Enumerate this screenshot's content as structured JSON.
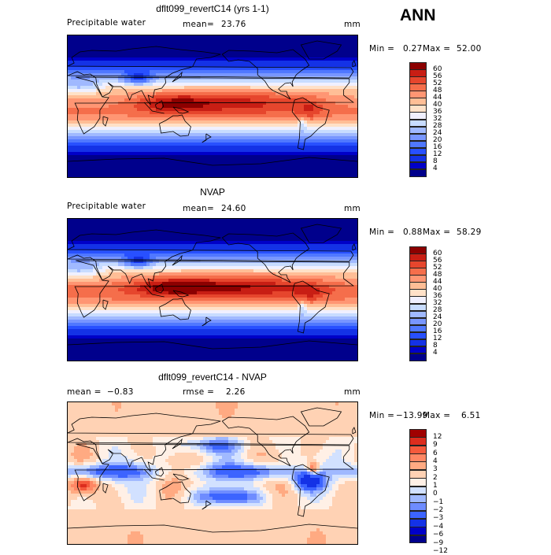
{
  "header": {
    "season": "ANN"
  },
  "colors": {
    "abs": [
      "#00008c",
      "#0000c8",
      "#1432e6",
      "#2850ff",
      "#5078ff",
      "#7896ff",
      "#a0b9ff",
      "#c8dcff",
      "#f0f0ff",
      "#ffe1c8",
      "#ffbe96",
      "#ff9673",
      "#f56e4b",
      "#e6462d",
      "#c81e14",
      "#8c0000"
    ],
    "diff": [
      "#00008c",
      "#0000c8",
      "#1432e6",
      "#3c64ff",
      "#6e8cff",
      "#a0b9ff",
      "#d2e1ff",
      "#fff0e6",
      "#ffd2b4",
      "#ffaa82",
      "#ff8764",
      "#f55a3c",
      "#dc2d1e",
      "#a00000"
    ]
  },
  "panels": [
    {
      "title": "dflt099_revertC14 (yrs 1-1)",
      "left": "Precipitable water",
      "mean_label": "mean=",
      "mean_value": "23.76",
      "units": "mm",
      "min_label": "Min =",
      "min_value": "0.27",
      "max_label": "Max =",
      "max_value": "52.00",
      "levels": [
        "60",
        "56",
        "52",
        "48",
        "44",
        "40",
        "36",
        "32",
        "28",
        "24",
        "20",
        "16",
        "12",
        "8",
        "4"
      ]
    },
    {
      "title": "NVAP",
      "left": "Precipitable water",
      "mean_label": "mean=",
      "mean_value": "24.60",
      "units": "mm",
      "min_label": "Min =",
      "min_value": "0.88",
      "max_label": "Max =",
      "max_value": "58.29",
      "levels": [
        "60",
        "56",
        "52",
        "48",
        "44",
        "40",
        "36",
        "32",
        "28",
        "24",
        "20",
        "16",
        "12",
        "8",
        "4"
      ]
    },
    {
      "title": "dflt099_revertC14 - NVAP",
      "left": "mean =",
      "left_value": "−0.83",
      "rmse_label": "rmse =",
      "rmse_value": "2.26",
      "units": "mm",
      "min_label": "Min =",
      "min_value": "−13.99",
      "max_label": "Max =",
      "max_value": "6.51",
      "levels": [
        "12",
        "9",
        "6",
        "4",
        "3",
        "2",
        "1",
        "0",
        "−1",
        "−2",
        "−3",
        "−4",
        "−6",
        "−9",
        "−12"
      ]
    }
  ],
  "chart_data": [
    {
      "type": "heatmap",
      "title": "dflt099_revertC14 (yrs 1-1)",
      "variable": "Precipitable water",
      "units": "mm",
      "mean": 23.76,
      "min": 0.27,
      "max": 52.0,
      "contour_levels": [
        4,
        8,
        12,
        16,
        20,
        24,
        28,
        32,
        36,
        40,
        44,
        48,
        52,
        56,
        60
      ]
    },
    {
      "type": "heatmap",
      "title": "NVAP",
      "variable": "Precipitable water",
      "units": "mm",
      "mean": 24.6,
      "min": 0.88,
      "max": 58.29,
      "contour_levels": [
        4,
        8,
        12,
        16,
        20,
        24,
        28,
        32,
        36,
        40,
        44,
        48,
        52,
        56,
        60
      ]
    },
    {
      "type": "heatmap",
      "title": "dflt099_revertC14 - NVAP",
      "units": "mm",
      "mean": -0.83,
      "rmse": 2.26,
      "min": -13.99,
      "max": 6.51,
      "contour_levels": [
        -12,
        -9,
        -6,
        -4,
        -3,
        -2,
        -1,
        0,
        1,
        2,
        3,
        4,
        6,
        9,
        12
      ]
    }
  ]
}
